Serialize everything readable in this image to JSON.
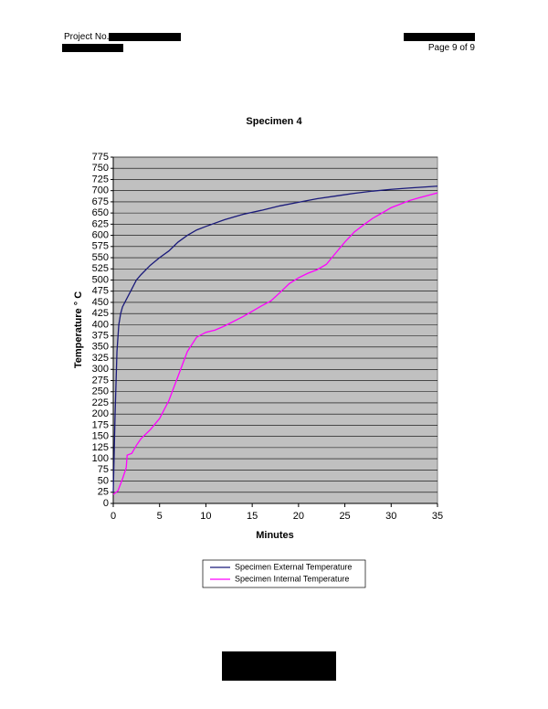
{
  "header": {
    "project_label": "Project No.",
    "page": "Page 9 of 9"
  },
  "chart_data": {
    "type": "line",
    "title": "Specimen 4",
    "x_label": "Minutes",
    "y_label": "Temperature  ° C",
    "xlim": [
      0,
      35
    ],
    "xticks": [
      0,
      5,
      10,
      15,
      20,
      25,
      30,
      35
    ],
    "ylim": [
      0,
      775
    ],
    "yticks": [
      0,
      25,
      50,
      75,
      100,
      125,
      150,
      175,
      200,
      225,
      250,
      275,
      300,
      325,
      350,
      375,
      400,
      425,
      450,
      475,
      500,
      525,
      550,
      575,
      600,
      625,
      650,
      675,
      700,
      725,
      750,
      775
    ],
    "grid": true,
    "background": "#c0c0c0",
    "series": [
      {
        "name": "Specimen External Temperature",
        "color": "#1a1a7a",
        "x": [
          0,
          0.2,
          0.4,
          0.6,
          0.8,
          1,
          1.5,
          2,
          2.5,
          3,
          4,
          5,
          6,
          7,
          8,
          9,
          10,
          12,
          14,
          16,
          18,
          20,
          22,
          24,
          26,
          28,
          30,
          32,
          35
        ],
        "values": [
          25,
          200,
          340,
          400,
          425,
          440,
          460,
          480,
          500,
          512,
          533,
          550,
          565,
          585,
          600,
          612,
          620,
          635,
          647,
          656,
          666,
          674,
          682,
          688,
          694,
          699,
          703,
          706,
          710
        ]
      },
      {
        "name": "Specimen Internal Temperature",
        "color": "#ff00ff",
        "x": [
          0,
          0.5,
          1,
          1.4,
          1.5,
          2,
          2.5,
          3,
          4,
          5,
          6,
          7,
          8,
          9,
          10,
          11,
          12,
          14,
          16,
          17,
          18,
          19,
          20,
          21,
          22,
          23,
          24,
          25,
          26,
          27,
          28,
          29,
          30,
          31,
          32,
          33,
          35
        ],
        "values": [
          20,
          28,
          55,
          80,
          108,
          112,
          130,
          145,
          165,
          190,
          230,
          285,
          340,
          372,
          383,
          388,
          397,
          418,
          442,
          453,
          472,
          492,
          505,
          515,
          523,
          535,
          560,
          585,
          607,
          623,
          638,
          650,
          662,
          670,
          678,
          684,
          695
        ]
      }
    ]
  }
}
